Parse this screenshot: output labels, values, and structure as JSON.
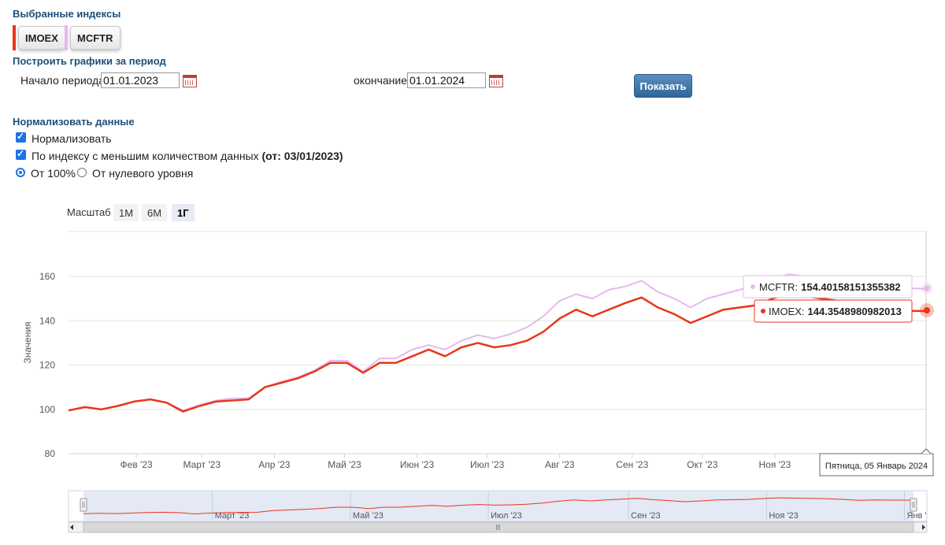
{
  "selected": {
    "heading": "Выбранные индексы",
    "chips": [
      {
        "label": "IMOEX",
        "color": "#e8361a"
      },
      {
        "label": "MCFTR",
        "color": "#e7b8ef"
      }
    ]
  },
  "period": {
    "heading": "Построить графики за период",
    "start_label": "Начало периода",
    "start_value": "01.01.2023",
    "end_label": "окончание",
    "end_value": "01.01.2024",
    "show_button": "Показать"
  },
  "normalize": {
    "heading": "Нормализовать данные",
    "normalize_label": "Нормализовать",
    "fewer_label": "По индексу с меньшим количеством данных",
    "fewer_date": "(от: 03/01/2023)",
    "from100_label": "От 100%",
    "fromzero_label": "От нулевого уровня"
  },
  "zoom": {
    "label": "Масштаб",
    "buttons": [
      "1М",
      "6М",
      "1Г"
    ],
    "active": "1Г"
  },
  "tooltip": {
    "mcftr_name": "MCFTR:",
    "mcftr_value": "154.40158151355382",
    "imoex_name": "IMOEX:",
    "imoex_value": "144.3548980982013",
    "date": "Пятница, 05 Январь 2024"
  },
  "navigator": {
    "labels": [
      "Март '23",
      "Май '23",
      "Июл '23",
      "Сен '23",
      "Ноя '23",
      "Янв '"
    ]
  },
  "chart_data": {
    "type": "line",
    "ylabel": "Значения",
    "ylim": [
      80,
      160
    ],
    "yticks": [
      80,
      100,
      120,
      140,
      160
    ],
    "xtick_labels": [
      "Фев '23",
      "Март '23",
      "Апр '23",
      "Май '23",
      "Июн '23",
      "Июл '23",
      "Авг '23",
      "Сен '23",
      "Окт '23",
      "Ноя '23"
    ],
    "x": [
      "2023-01-03",
      "2023-01-10",
      "2023-01-17",
      "2023-01-24",
      "2023-01-31",
      "2023-02-07",
      "2023-02-14",
      "2023-02-21",
      "2023-02-28",
      "2023-03-07",
      "2023-03-14",
      "2023-03-21",
      "2023-03-28",
      "2023-04-04",
      "2023-04-11",
      "2023-04-18",
      "2023-04-25",
      "2023-05-02",
      "2023-05-09",
      "2023-05-16",
      "2023-05-23",
      "2023-05-30",
      "2023-06-06",
      "2023-06-13",
      "2023-06-20",
      "2023-06-27",
      "2023-07-04",
      "2023-07-11",
      "2023-07-18",
      "2023-07-25",
      "2023-08-01",
      "2023-08-08",
      "2023-08-15",
      "2023-08-22",
      "2023-08-29",
      "2023-09-05",
      "2023-09-12",
      "2023-09-19",
      "2023-09-26",
      "2023-10-03",
      "2023-10-10",
      "2023-10-17",
      "2023-10-24",
      "2023-10-31",
      "2023-11-07",
      "2023-11-14",
      "2023-11-21",
      "2023-11-28",
      "2023-12-05",
      "2023-12-12",
      "2023-12-19",
      "2023-12-26",
      "2024-01-05"
    ],
    "series": [
      {
        "name": "IMOEX",
        "color": "#e8361a",
        "values": [
          99.5,
          101,
          100,
          101.5,
          103.5,
          104.5,
          103,
          99,
          101.5,
          103.5,
          104,
          104.5,
          110,
          112,
          114,
          117,
          121,
          121,
          116.5,
          121,
          121,
          124,
          127,
          124,
          128,
          130,
          128,
          129,
          131,
          135,
          141,
          145,
          142,
          145,
          148,
          150.5,
          146,
          143,
          139,
          142,
          145,
          146,
          147,
          150,
          152,
          151,
          150,
          149,
          147,
          144,
          145,
          144.5,
          144.35
        ]
      },
      {
        "name": "MCFTR",
        "color": "#e7b8ef",
        "values": [
          99.5,
          101,
          100,
          101.5,
          103.5,
          104.5,
          103,
          99.5,
          102,
          104,
          105,
          105,
          110,
          112.5,
          114.5,
          117.5,
          122,
          122,
          117,
          123,
          123,
          127,
          129,
          127,
          131,
          133.5,
          132,
          134,
          137,
          142,
          149,
          152,
          150,
          154,
          155.5,
          158,
          153,
          150,
          146,
          150,
          152,
          154,
          156,
          159,
          161,
          160,
          160,
          159,
          157,
          154,
          155,
          154.7,
          154.4
        ]
      }
    ]
  }
}
